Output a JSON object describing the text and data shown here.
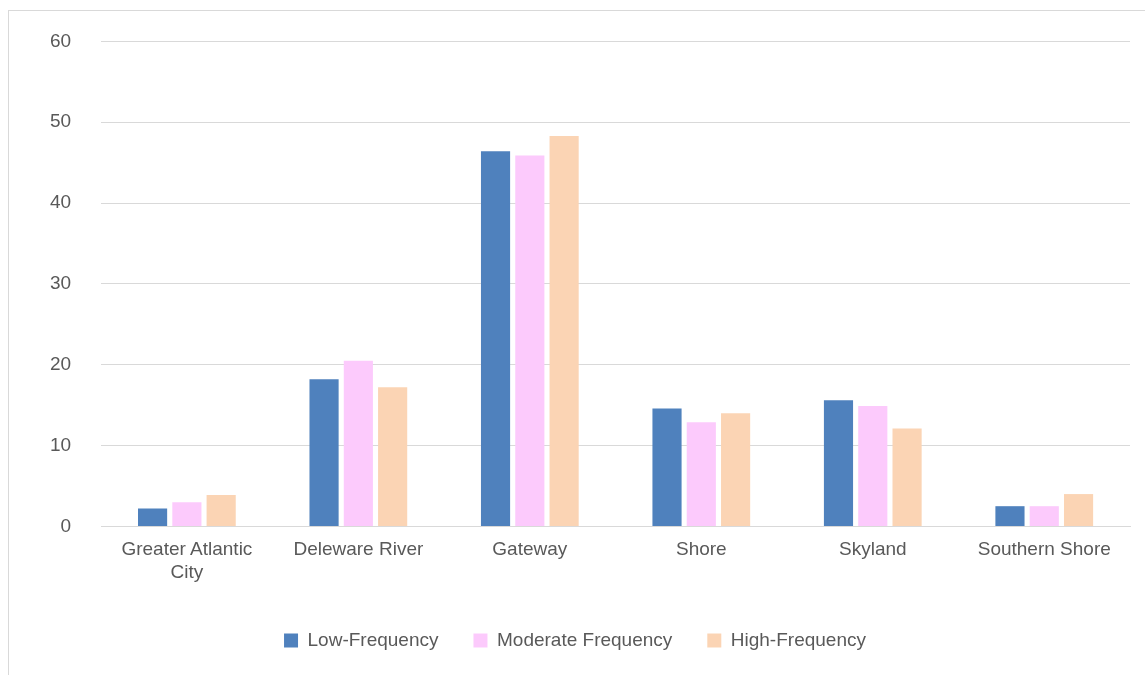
{
  "chart_data": {
    "type": "bar",
    "categories": [
      [
        "Greater Atlantic",
        "City"
      ],
      "Deleware River",
      "Gateway",
      "Shore",
      "Skyland",
      "Southern Shore"
    ],
    "series": [
      {
        "name": "Low-Frequency",
        "color": "#4f81bd",
        "values": [
          2.2,
          18.2,
          46.4,
          14.6,
          15.6,
          2.5
        ]
      },
      {
        "name": "Moderate Frequency",
        "color": "#fccafc",
        "values": [
          3.0,
          20.5,
          45.9,
          12.9,
          14.9,
          2.5
        ]
      },
      {
        "name": "High-Frequency",
        "color": "#fbd4b4",
        "values": [
          3.9,
          17.2,
          48.3,
          14.0,
          12.1,
          4.0
        ]
      }
    ],
    "ylim": [
      0,
      60
    ],
    "yticks": [
      0,
      10,
      20,
      30,
      40,
      50,
      60
    ],
    "grid": "y",
    "legend": "bottom"
  }
}
